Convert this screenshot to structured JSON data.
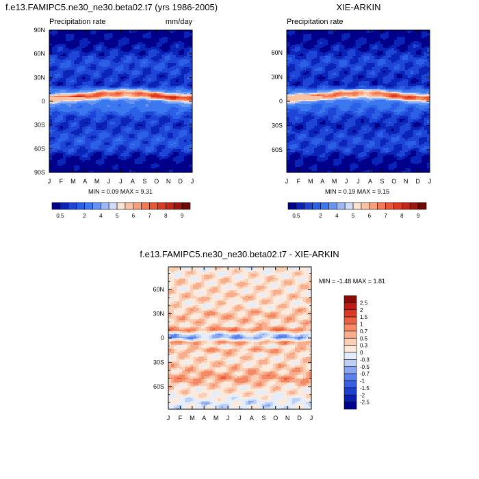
{
  "chart_data": [
    {
      "type": "heatmap",
      "title": "f.e13.FAMIPC5.ne30_ne30.beta02.t7 (yrs 1986-2005)",
      "left_label": "Precipitation rate",
      "right_label": "mm/day",
      "x_ticks": [
        "J",
        "F",
        "M",
        "A",
        "M",
        "J",
        "J",
        "A",
        "S",
        "O",
        "N",
        "D",
        "J"
      ],
      "y_ticks": [
        "90N",
        "60N",
        "30N",
        "0",
        "30S",
        "60S",
        "90S"
      ],
      "ylim": [
        -90,
        90
      ],
      "stats": "MIN =  0.09 MAX =   9.31",
      "colorbar": {
        "orientation": "horizontal",
        "labels": [
          "0.5",
          "2",
          "4",
          "5",
          "6",
          "7",
          "8",
          "9"
        ],
        "levels": [
          0.5,
          1,
          1.5,
          2,
          3,
          4,
          4.5,
          5,
          5.5,
          6,
          6.5,
          7,
          7.5,
          8,
          8.5,
          9
        ],
        "colors": [
          "#00008b",
          "#0b24b8",
          "#1f45d6",
          "#2a5fe6",
          "#3b77ee",
          "#6594f2",
          "#9cb9f5",
          "#cfddf8",
          "#fbe3d2",
          "#f9c2a4",
          "#f7a07c",
          "#f27a57",
          "#ea5736",
          "#dc3a20",
          "#c02716",
          "#9a170d",
          "#6e0a07"
        ]
      },
      "zonal_profile": [
        {
          "lat": 90,
          "v": 0.3
        },
        {
          "lat": 75,
          "v": 0.6
        },
        {
          "lat": 60,
          "v": 1.6
        },
        {
          "lat": 50,
          "v": 2.6
        },
        {
          "lat": 40,
          "v": 2.3
        },
        {
          "lat": 30,
          "v": 1.8
        },
        {
          "lat": 20,
          "v": 1.8
        },
        {
          "lat": 10,
          "v": 5.5
        },
        {
          "lat": 5,
          "v": 7.5
        },
        {
          "lat": 0,
          "v": 5.0
        },
        {
          "lat": -5,
          "v": 4.6
        },
        {
          "lat": -10,
          "v": 4.2
        },
        {
          "lat": -20,
          "v": 2.2
        },
        {
          "lat": -30,
          "v": 1.8
        },
        {
          "lat": -40,
          "v": 2.3
        },
        {
          "lat": -50,
          "v": 2.8
        },
        {
          "lat": -60,
          "v": 2.4
        },
        {
          "lat": -70,
          "v": 0.9
        },
        {
          "lat": -80,
          "v": 0.3
        },
        {
          "lat": -90,
          "v": 0.1
        }
      ]
    },
    {
      "type": "heatmap",
      "title": "XIE-ARKIN",
      "left_label": "Precipitation rate",
      "right_label": "",
      "x_ticks": [
        "J",
        "F",
        "M",
        "A",
        "M",
        "J",
        "J",
        "A",
        "S",
        "O",
        "N",
        "D",
        "J"
      ],
      "y_ticks": [
        "60N",
        "30N",
        "0",
        "30S",
        "60S"
      ],
      "ylim": [
        -88,
        88
      ],
      "stats": "MIN =  0.19 MAX =   9.15",
      "colorbar": {
        "orientation": "horizontal",
        "labels": [
          "0.5",
          "2",
          "4",
          "5",
          "6",
          "7",
          "8",
          "9"
        ],
        "levels": [
          0.5,
          1,
          1.5,
          2,
          3,
          4,
          4.5,
          5,
          5.5,
          6,
          6.5,
          7,
          7.5,
          8,
          8.5,
          9
        ],
        "colors": [
          "#00008b",
          "#0b24b8",
          "#1f45d6",
          "#2a5fe6",
          "#3b77ee",
          "#6594f2",
          "#9cb9f5",
          "#cfddf8",
          "#fbe3d2",
          "#f9c2a4",
          "#f7a07c",
          "#f27a57",
          "#ea5736",
          "#dc3a20",
          "#c02716",
          "#9a170d",
          "#6e0a07"
        ]
      },
      "zonal_profile": [
        {
          "lat": 88,
          "v": 0.3
        },
        {
          "lat": 75,
          "v": 0.6
        },
        {
          "lat": 60,
          "v": 1.5
        },
        {
          "lat": 50,
          "v": 2.4
        },
        {
          "lat": 40,
          "v": 2.1
        },
        {
          "lat": 30,
          "v": 1.6
        },
        {
          "lat": 20,
          "v": 1.6
        },
        {
          "lat": 10,
          "v": 5.0
        },
        {
          "lat": 5,
          "v": 7.0
        },
        {
          "lat": 0,
          "v": 4.5
        },
        {
          "lat": -5,
          "v": 3.8
        },
        {
          "lat": -10,
          "v": 3.4
        },
        {
          "lat": -20,
          "v": 2.0
        },
        {
          "lat": -30,
          "v": 1.5
        },
        {
          "lat": -40,
          "v": 2.0
        },
        {
          "lat": -50,
          "v": 2.4
        },
        {
          "lat": -60,
          "v": 2.0
        },
        {
          "lat": -70,
          "v": 0.8
        },
        {
          "lat": -88,
          "v": 0.2
        }
      ]
    },
    {
      "type": "heatmap",
      "title": "f.e13.FAMIPC5.ne30_ne30.beta02.t7 - XIE-ARKIN",
      "x_ticks": [
        "J",
        "F",
        "M",
        "A",
        "M",
        "J",
        "J",
        "A",
        "S",
        "O",
        "N",
        "D",
        "J"
      ],
      "y_ticks": [
        "60N",
        "30N",
        "0",
        "30S",
        "60S"
      ],
      "ylim": [
        -88,
        88
      ],
      "stats": "MIN =  -1.48 MAX =   1.81",
      "colorbar": {
        "orientation": "vertical",
        "labels": [
          "2.5",
          "2",
          "1.5",
          "1",
          "0.7",
          "0.5",
          "0.3",
          "0",
          "-0.3",
          "-0.5",
          "-0.7",
          "-1",
          "-1.5",
          "-2",
          "-2.5"
        ],
        "levels": [
          -2.5,
          -2,
          -1.5,
          -1,
          -0.7,
          -0.5,
          -0.3,
          0,
          0.3,
          0.5,
          0.7,
          1,
          1.5,
          2,
          2.5
        ],
        "colors": [
          "#00008b",
          "#0a1fb0",
          "#1d3fd2",
          "#3560e6",
          "#5a80ee",
          "#8aa6f2",
          "#bcd0f6",
          "#e4edfb",
          "#fdeadd",
          "#fbcfb5",
          "#f8ae8c",
          "#f38a65",
          "#ea6040",
          "#d83a24",
          "#b81c12",
          "#8b0b07"
        ]
      },
      "zonal_profile": [
        {
          "lat": 88,
          "v": 0.05
        },
        {
          "lat": 80,
          "v": 0.2
        },
        {
          "lat": 70,
          "v": 0.3
        },
        {
          "lat": 60,
          "v": 0.25
        },
        {
          "lat": 50,
          "v": 0.35
        },
        {
          "lat": 40,
          "v": 0.2
        },
        {
          "lat": 30,
          "v": 0.5
        },
        {
          "lat": 25,
          "v": 0.45
        },
        {
          "lat": 15,
          "v": 0.3
        },
        {
          "lat": 10,
          "v": 0.9
        },
        {
          "lat": 5,
          "v": -0.3
        },
        {
          "lat": 0,
          "v": -0.6
        },
        {
          "lat": -5,
          "v": 0.7
        },
        {
          "lat": -10,
          "v": 0.2
        },
        {
          "lat": -15,
          "v": 0.6
        },
        {
          "lat": -20,
          "v": 0.3
        },
        {
          "lat": -30,
          "v": 0.3
        },
        {
          "lat": -40,
          "v": 0.45
        },
        {
          "lat": -50,
          "v": 0.7
        },
        {
          "lat": -60,
          "v": 0.3
        },
        {
          "lat": -70,
          "v": 0.15
        },
        {
          "lat": -80,
          "v": -0.2
        },
        {
          "lat": -88,
          "v": -0.1
        }
      ]
    }
  ]
}
